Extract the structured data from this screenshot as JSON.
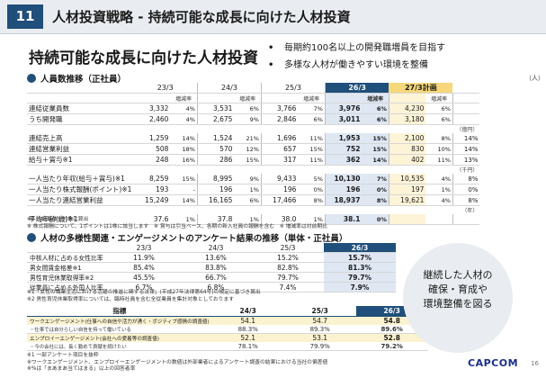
{
  "header": {
    "number": "11",
    "title": "人材投資戦略 - 持続可能な成長に向けた人材投資"
  },
  "subtitle": "持続可能な成長に向けた人材投資",
  "bullets": [
    "毎期約100名以上の開発職増員を目指す",
    "多様な人材が働きやすい環境を整備"
  ],
  "section1": {
    "title": "人員数推移（正社員）",
    "unit_people": "（人）",
    "columns": [
      "23/3",
      "24/3",
      "25/3",
      "26/3",
      "27/3計画"
    ],
    "sub_header": "増減率",
    "rows": [
      {
        "label": "連結従業員数",
        "vals": [
          "3,332",
          "4%",
          "3,531",
          "6%",
          "3,766",
          "7%",
          "3,976",
          "6%",
          "4,230",
          "6%"
        ]
      },
      {
        "label": "うち開発職",
        "vals": [
          "2,460",
          "4%",
          "2,675",
          "9%",
          "2,846",
          "6%",
          "3,011",
          "6%",
          "3,180",
          "6%"
        ]
      },
      {
        "unit": "（億円）"
      },
      {
        "label": "連結売上高",
        "vals": [
          "1,259",
          "14%",
          "1,524",
          "21%",
          "1,696",
          "11%",
          "1,953",
          "15%",
          "2,100",
          "8%"
        ],
        "tail": "14%"
      },
      {
        "label": "連結営業利益",
        "vals": [
          "508",
          "18%",
          "570",
          "12%",
          "657",
          "15%",
          "752",
          "15%",
          "830",
          "10%"
        ],
        "tail": "14%"
      },
      {
        "label": "給与＋賞与※1",
        "vals": [
          "248",
          "16%",
          "286",
          "15%",
          "317",
          "11%",
          "362",
          "14%",
          "402",
          "11%"
        ],
        "tail": "13%"
      },
      {
        "unit": "（千円）"
      },
      {
        "label": "一人当たり年収(給与＋賞与)※1",
        "vals": [
          "8,259",
          "15%",
          "8,995",
          "9%",
          "9,433",
          "5%",
          "10,130",
          "7%",
          "10,535",
          "4%"
        ],
        "tail": "8%"
      },
      {
        "label": "一人当たり株式報酬(ポイント)※1",
        "vals": [
          "193",
          "-",
          "196",
          "1%",
          "196",
          "0%",
          "196",
          "0%",
          "197",
          "1%"
        ],
        "tail": "0%"
      },
      {
        "label": "一人当たり連結営業利益",
        "vals": [
          "15,249",
          "14%",
          "16,165",
          "6%",
          "17,466",
          "8%",
          "18,937",
          "8%",
          "19,621",
          "4%"
        ],
        "tail": "8%"
      },
      {
        "unit": "（年）"
      },
      {
        "label": "平均年齢(歳)※1",
        "vals": [
          "37.6",
          "1%",
          "37.8",
          "1%",
          "38.0",
          "1%",
          "38.1",
          "0%",
          "",
          ""
        ]
      }
    ],
    "notes": [
      "※1 当社単体を対象に算出",
      "※ 株式報酬について、1ポイントは1株に該当します　※ 賞与は引当ベース、各期の新入社員の報酬を含む　※ 増減率は対前期比"
    ]
  },
  "section2": {
    "title": "人材の多様性関連・エンゲージメントのアンケート結果の推移（単体・正社員）",
    "columns": [
      "23/3",
      "24/3",
      "25/3",
      "26/3"
    ],
    "rows": [
      {
        "label": "中核人材に占める女性比率",
        "vals": [
          "11.9%",
          "13.6%",
          "15.2%",
          "15.7%"
        ]
      },
      {
        "label": "男女間賃金格差※1",
        "vals": [
          "85.4%",
          "83.8%",
          "82.8%",
          "81.3%"
        ]
      },
      {
        "label": "男性育児休業取得率※2",
        "vals": [
          "45.5%",
          "66.7%",
          "79.7%",
          "79.7%"
        ]
      },
      {
        "label": "従業員に占める外国人比率",
        "vals": [
          "6.7%",
          "6.8%",
          "7.4%",
          "7.9%"
        ]
      }
    ],
    "notes": [
      "※1「女性の職業生活における活躍の推進に関する法律」(平成27年法律第64号)の規定に基づき算出",
      "※2 男性育児休業取得率については、臨時社員を含む全従業員を集計対象としております"
    ]
  },
  "section3": {
    "columns": [
      "指標",
      "24/3",
      "25/3",
      "26/3"
    ],
    "rows": [
      {
        "kind": "main",
        "label": "ワークエンゲージメント(仕事への自信や活力が湧く・ポジティブ感情の調査値)",
        "vals": [
          "54.1",
          "54.7",
          "54.8"
        ]
      },
      {
        "kind": "sub",
        "label": "・仕事では自分らしい自信を持って働いている",
        "vals": [
          "88.3%",
          "89.3%",
          "89.6%"
        ]
      },
      {
        "kind": "main",
        "label": "エンプロイーエンゲージメント(会社への愛着等の調査値)",
        "vals": [
          "52.1",
          "53.1",
          "52.8"
        ]
      },
      {
        "kind": "sub",
        "label": "・今の会社には、長く勤めて貢献を続けたい",
        "vals": [
          "78.1%",
          "79.9%",
          "79.2%"
        ]
      }
    ],
    "notes": [
      "※1 一部アンケート項目を抜粋",
      "※ワークエンゲージメント、エンプロイーエンゲージメントの数値は外部業者によるアンケート調査の結果における当社の偏差値",
      "※%は「まあまあ当てはまる」以上の回答者率"
    ]
  },
  "circle_text": [
    "継続した人材の",
    "確保・育成や",
    "環境整備を図る"
  ],
  "logo": "CAPCOM",
  "page_number": "16"
}
